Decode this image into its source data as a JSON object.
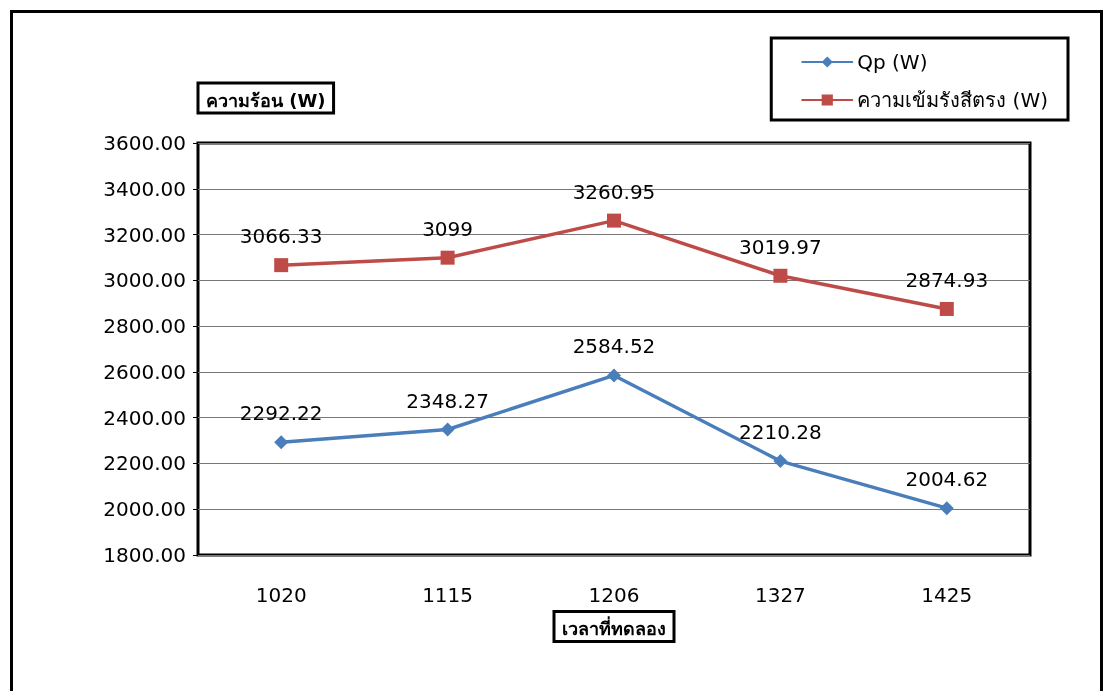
{
  "chart_data": {
    "type": "line",
    "xlabel": "เวลาที่ทดลอง",
    "ylabel": "ความร้อน (W)",
    "categories": [
      "1020",
      "1115",
      "1206",
      "1327",
      "1425"
    ],
    "series": [
      {
        "name": "Qp (W)",
        "color": "#4a7ebb",
        "marker": "diamond",
        "values": [
          2292.22,
          2348.27,
          2584.52,
          2210.28,
          2004.62
        ]
      },
      {
        "name": "ความเข้มรังสีตรง (W)",
        "color": "#be4b48",
        "marker": "square",
        "values": [
          3066.33,
          3099,
          3260.95,
          3019.97,
          2874.93
        ]
      }
    ],
    "ylim": [
      1800,
      3600
    ],
    "yticks": [
      {
        "value": 1800,
        "label": "1800.00"
      },
      {
        "value": 2000,
        "label": "2000.00"
      },
      {
        "value": 2200,
        "label": "2200.00"
      },
      {
        "value": 2400,
        "label": "2400.00"
      },
      {
        "value": 2600,
        "label": "2600.00"
      },
      {
        "value": 2800,
        "label": "2800.00"
      },
      {
        "value": 3000,
        "label": "3000.00"
      },
      {
        "value": 3200,
        "label": "3200.00"
      },
      {
        "value": 3400,
        "label": "3400.00"
      },
      {
        "value": 3600,
        "label": "3600.00"
      }
    ],
    "grid": "y",
    "legend": "top right",
    "data_labels": true,
    "line_style": "solid"
  }
}
